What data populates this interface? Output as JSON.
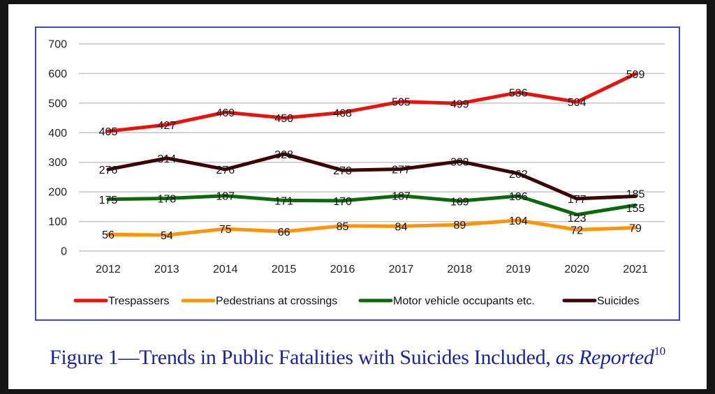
{
  "caption": {
    "prefix": "Figure 1—Trends in Public Fatalities with Suicides Included,",
    "italic": "as Reported",
    "footnote": "10"
  },
  "chart_data": {
    "type": "line",
    "title": "",
    "xlabel": "",
    "ylabel": "",
    "ylim": [
      0,
      700
    ],
    "yticks": [
      0,
      100,
      200,
      300,
      400,
      500,
      600,
      700
    ],
    "grid": true,
    "legend_position": "bottom",
    "categories": [
      "2012",
      "2013",
      "2014",
      "2015",
      "2016",
      "2017",
      "2018",
      "2019",
      "2020",
      "2021"
    ],
    "series": [
      {
        "name": "Trespassers",
        "color": "#e8120e",
        "values": [
          405,
          427,
          469,
          450,
          468,
          505,
          499,
          536,
          504,
          599
        ]
      },
      {
        "name": "Pedestrians at crossings",
        "color": "#ff9408",
        "values": [
          56,
          54,
          75,
          66,
          85,
          84,
          89,
          104,
          72,
          79
        ]
      },
      {
        "name": "Motor vehicle occupants etc.",
        "color": "#0a6a0a",
        "values": [
          175,
          178,
          187,
          171,
          170,
          187,
          169,
          186,
          123,
          155
        ]
      },
      {
        "name": "Suicides",
        "color": "#3e0505",
        "values": [
          276,
          314,
          276,
          328,
          273,
          277,
          303,
          262,
          177,
          185
        ]
      }
    ]
  }
}
